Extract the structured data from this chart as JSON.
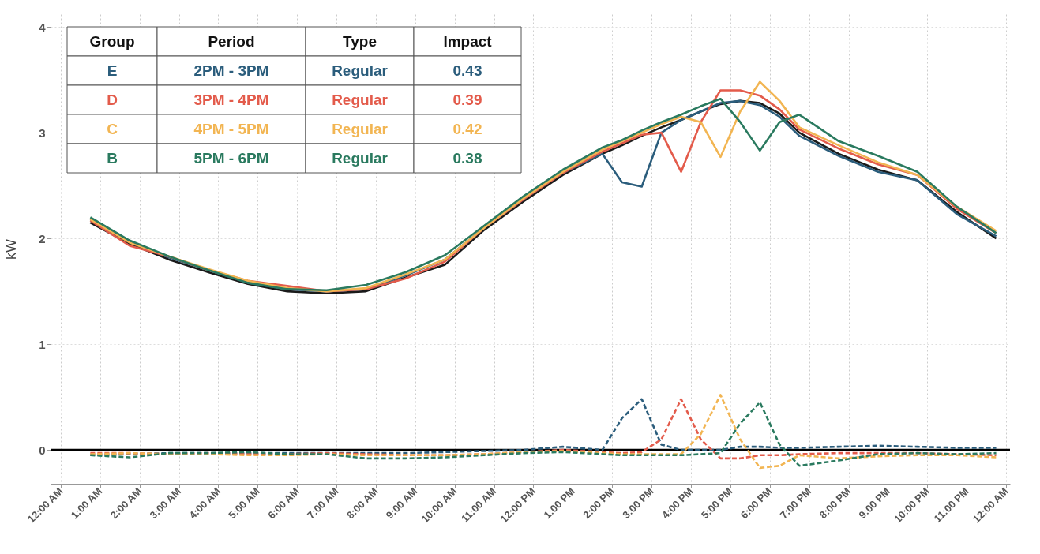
{
  "chart_data": {
    "type": "line",
    "ylabel": "kW",
    "x": [
      0.75,
      1.75,
      2.75,
      3.75,
      4.75,
      5.75,
      6.75,
      7.75,
      8.75,
      9.75,
      10.75,
      11.75,
      12.75,
      13.75,
      14.25,
      14.75,
      15.25,
      15.75,
      16.25,
      16.75,
      17.25,
      17.75,
      18.25,
      18.75,
      19.75,
      20.75,
      21.75,
      22.75,
      23.75
    ],
    "series": [
      {
        "color": "#1a1a1a",
        "values": [
          2.15,
          1.95,
          1.8,
          1.68,
          1.57,
          1.5,
          1.48,
          1.5,
          1.63,
          1.75,
          2.08,
          2.35,
          2.6,
          2.8,
          2.88,
          2.97,
          3.05,
          3.12,
          3.2,
          3.27,
          3.3,
          3.28,
          3.18,
          3.0,
          2.8,
          2.65,
          2.55,
          2.25,
          2.0
        ]
      },
      {
        "name": "E",
        "color": "#2b5d7c",
        "values": [
          2.18,
          1.97,
          1.82,
          1.7,
          1.58,
          1.52,
          1.5,
          1.52,
          1.65,
          1.8,
          2.1,
          2.37,
          2.62,
          2.8,
          2.53,
          2.49,
          3.0,
          3.12,
          3.2,
          3.28,
          3.3,
          3.26,
          3.15,
          2.97,
          2.78,
          2.63,
          2.55,
          2.23,
          2.02
        ]
      },
      {
        "name": "D",
        "color": "#e35b4b",
        "values": [
          2.17,
          1.93,
          1.83,
          1.7,
          1.6,
          1.55,
          1.5,
          1.52,
          1.62,
          1.78,
          2.1,
          2.37,
          2.62,
          2.82,
          2.9,
          2.98,
          3.0,
          2.63,
          3.1,
          3.4,
          3.4,
          3.35,
          3.22,
          3.03,
          2.85,
          2.7,
          2.6,
          2.28,
          2.05
        ]
      },
      {
        "name": "C",
        "color": "#f2b552",
        "values": [
          2.18,
          1.96,
          1.83,
          1.71,
          1.6,
          1.53,
          1.5,
          1.53,
          1.66,
          1.8,
          2.1,
          2.38,
          2.63,
          2.84,
          2.92,
          3.0,
          3.08,
          3.15,
          3.1,
          2.77,
          3.2,
          3.48,
          3.3,
          3.05,
          2.88,
          2.72,
          2.6,
          2.3,
          2.07
        ]
      },
      {
        "name": "B",
        "color": "#2a7a5f",
        "values": [
          2.2,
          1.98,
          1.83,
          1.7,
          1.58,
          1.52,
          1.51,
          1.56,
          1.68,
          1.84,
          2.12,
          2.4,
          2.65,
          2.86,
          2.93,
          3.02,
          3.1,
          3.17,
          3.25,
          3.32,
          3.1,
          2.83,
          3.1,
          3.17,
          2.92,
          2.78,
          2.63,
          2.3,
          2.05
        ]
      },
      {
        "color": "#2b5d7c",
        "line_style": "dashed",
        "values": [
          -0.05,
          -0.04,
          -0.03,
          -0.03,
          -0.03,
          -0.03,
          -0.03,
          -0.03,
          -0.03,
          -0.02,
          -0.01,
          0.0,
          0.03,
          0.0,
          0.3,
          0.48,
          0.05,
          0.0,
          0.0,
          0.0,
          0.03,
          0.03,
          0.02,
          0.02,
          0.03,
          0.04,
          0.03,
          0.02,
          0.02
        ]
      },
      {
        "color": "#e35b4b",
        "line_style": "dashed",
        "values": [
          -0.03,
          -0.03,
          -0.04,
          -0.03,
          -0.04,
          -0.04,
          -0.03,
          -0.04,
          -0.05,
          -0.05,
          -0.04,
          -0.02,
          0.0,
          -0.02,
          -0.03,
          -0.02,
          0.1,
          0.48,
          0.1,
          -0.08,
          -0.08,
          -0.05,
          -0.05,
          -0.04,
          -0.03,
          -0.03,
          -0.03,
          -0.04,
          -0.05
        ]
      },
      {
        "color": "#f2b552",
        "line_style": "dashed",
        "values": [
          -0.04,
          -0.03,
          -0.04,
          -0.04,
          -0.05,
          -0.05,
          -0.04,
          -0.05,
          -0.05,
          -0.05,
          -0.04,
          -0.02,
          -0.01,
          -0.03,
          -0.04,
          -0.04,
          -0.04,
          -0.04,
          0.15,
          0.52,
          0.1,
          -0.17,
          -0.15,
          -0.05,
          -0.08,
          -0.06,
          -0.05,
          -0.05,
          -0.07
        ]
      },
      {
        "color": "#2a7a5f",
        "line_style": "dashed",
        "values": [
          -0.05,
          -0.07,
          -0.03,
          -0.03,
          -0.02,
          -0.04,
          -0.04,
          -0.08,
          -0.08,
          -0.07,
          -0.05,
          -0.03,
          -0.02,
          -0.04,
          -0.05,
          -0.05,
          -0.05,
          -0.05,
          -0.04,
          -0.03,
          0.25,
          0.45,
          0.05,
          -0.15,
          -0.1,
          -0.04,
          -0.03,
          -0.04,
          -0.03
        ]
      }
    ],
    "xlim": [
      -0.26,
      24.1
    ],
    "ylim": [
      -0.32,
      4.12
    ],
    "xticks": [
      {
        "value": 0,
        "label": "12:00 AM"
      },
      {
        "value": 1,
        "label": "1:00 AM"
      },
      {
        "value": 2,
        "label": "2:00 AM"
      },
      {
        "value": 3,
        "label": "3:00 AM"
      },
      {
        "value": 4,
        "label": "4:00 AM"
      },
      {
        "value": 5,
        "label": "5:00 AM"
      },
      {
        "value": 6,
        "label": "6:00 AM"
      },
      {
        "value": 7,
        "label": "7:00 AM"
      },
      {
        "value": 8,
        "label": "8:00 AM"
      },
      {
        "value": 9,
        "label": "9:00 AM"
      },
      {
        "value": 10,
        "label": "10:00 AM"
      },
      {
        "value": 11,
        "label": "11:00 AM"
      },
      {
        "value": 12,
        "label": "12:00 PM"
      },
      {
        "value": 13,
        "label": "1:00 PM"
      },
      {
        "value": 14,
        "label": "2:00 PM"
      },
      {
        "value": 15,
        "label": "3:00 PM"
      },
      {
        "value": 16,
        "label": "4:00 PM"
      },
      {
        "value": 17,
        "label": "5:00 PM"
      },
      {
        "value": 18,
        "label": "6:00 PM"
      },
      {
        "value": 19,
        "label": "7:00 PM"
      },
      {
        "value": 20,
        "label": "8:00 PM"
      },
      {
        "value": 21,
        "label": "9:00 PM"
      },
      {
        "value": 22,
        "label": "10:00 PM"
      },
      {
        "value": 23,
        "label": "11:00 PM"
      },
      {
        "value": 24,
        "label": "12:00 AM"
      }
    ],
    "yticks": [
      0,
      1,
      2,
      3,
      4
    ],
    "ref_lines": [
      {
        "axis": "y",
        "value": 0,
        "color": "#000000"
      }
    ],
    "annotations": [
      "Group",
      "Period",
      "Type",
      "Impact",
      "2PM - 3PM",
      "Regular",
      "0.43",
      "3PM - 4PM",
      "Regular",
      "0.39",
      "4PM - 5PM",
      "Regular",
      "0.42",
      "5PM - 6PM",
      "Regular",
      "0.38"
    ],
    "grid": true,
    "legend": "top left",
    "line_style": "solid",
    "marker": "none"
  }
}
